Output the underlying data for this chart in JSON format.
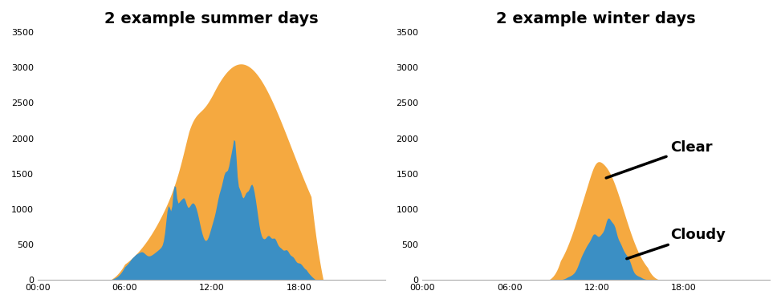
{
  "title_summer": "2 example summer days",
  "title_winter": "2 example winter days",
  "color_clear": "#F5A940",
  "color_cloudy": "#3B8FC4",
  "label_clear": "Clear",
  "label_cloudy": "Cloudy",
  "ylim": [
    0,
    3500
  ],
  "yticks": [
    0,
    500,
    1000,
    1500,
    2000,
    2500,
    3000,
    3500
  ],
  "xtick_labels": [
    "00:00",
    "06:00",
    "12:00",
    "18:00"
  ],
  "xtick_positions": [
    0,
    72,
    144,
    216
  ],
  "total_points": 288
}
